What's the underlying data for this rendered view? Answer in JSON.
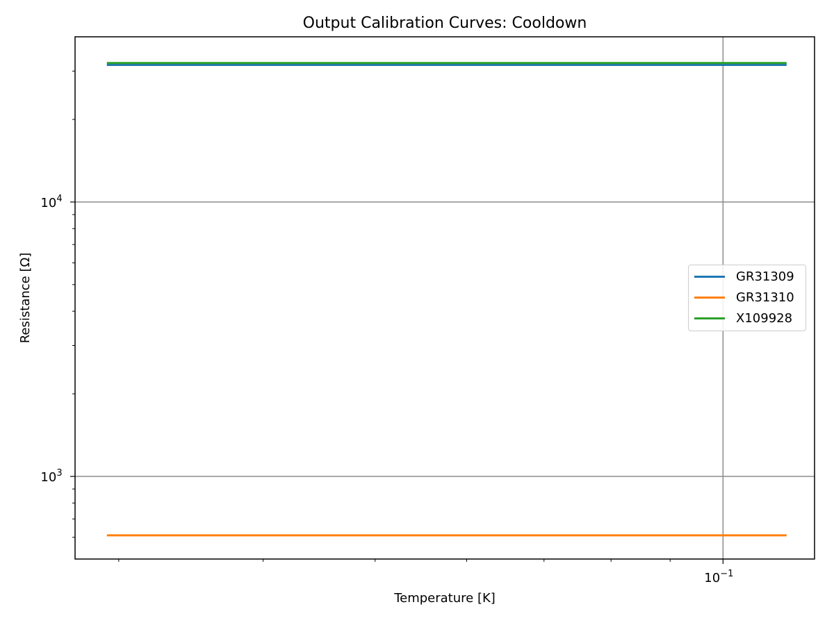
{
  "chart_data": {
    "type": "line",
    "title": "Output Calibration Curves: Cooldown",
    "xlabel": "Temperature [K]",
    "ylabel": "Resistance [Ω]",
    "xscale": "log",
    "yscale": "log",
    "xlim": [
      0.0275,
      0.12
    ],
    "ylim": [
      500,
      40000
    ],
    "grid": "major",
    "legend_position": "center-right",
    "x_major_ticks": [
      {
        "value": 0.1,
        "base": "10",
        "exp": "−1"
      }
    ],
    "y_major_ticks": [
      {
        "value": 1000,
        "base": "10",
        "exp": "3"
      },
      {
        "value": 10000,
        "base": "10",
        "exp": "4"
      }
    ],
    "series": [
      {
        "name": "GR31309",
        "color": "#1f77b4",
        "x": [
          0.0293,
          0.1135
        ],
        "y": [
          31600,
          31600
        ]
      },
      {
        "name": "GR31310",
        "color": "#ff7f0e",
        "x": [
          0.0293,
          0.1135
        ],
        "y": [
          610,
          610
        ]
      },
      {
        "name": "X109928",
        "color": "#2ca02c",
        "x": [
          0.0293,
          0.1135
        ],
        "y": [
          32100,
          32100
        ]
      }
    ]
  }
}
